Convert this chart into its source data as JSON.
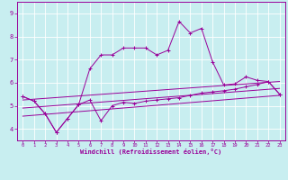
{
  "xlabel": "Windchill (Refroidissement éolien,°C)",
  "background_color": "#c8eef0",
  "grid_color": "#ffffff",
  "line_color": "#990099",
  "xlim": [
    -0.5,
    23.5
  ],
  "ylim": [
    3.5,
    9.5
  ],
  "yticks": [
    4,
    5,
    6,
    7,
    8,
    9
  ],
  "xticks": [
    0,
    1,
    2,
    3,
    4,
    5,
    6,
    7,
    8,
    9,
    10,
    11,
    12,
    13,
    14,
    15,
    16,
    17,
    18,
    19,
    20,
    21,
    22,
    23
  ],
  "line1_x": [
    0,
    1,
    2,
    3,
    4,
    5,
    6,
    7,
    8,
    9,
    10,
    11,
    12,
    13,
    14,
    15,
    16,
    17,
    18,
    19,
    20,
    21,
    22,
    23
  ],
  "line1_y": [
    5.4,
    5.2,
    4.65,
    3.85,
    4.45,
    5.05,
    5.25,
    4.35,
    5.0,
    5.15,
    5.1,
    5.2,
    5.25,
    5.3,
    5.35,
    5.45,
    5.55,
    5.6,
    5.65,
    5.72,
    5.82,
    5.92,
    6.05,
    5.5
  ],
  "line2_x": [
    0,
    1,
    2,
    3,
    4,
    5,
    6,
    7,
    8,
    9,
    10,
    11,
    12,
    13,
    14,
    15,
    16,
    17,
    18,
    19,
    20,
    21,
    22,
    23
  ],
  "line2_y": [
    5.4,
    5.2,
    4.65,
    3.85,
    4.45,
    5.05,
    6.6,
    7.2,
    7.2,
    7.5,
    7.5,
    7.5,
    7.2,
    7.4,
    8.65,
    8.15,
    8.35,
    6.9,
    5.9,
    5.95,
    6.25,
    6.1,
    6.05,
    5.5
  ],
  "line3_x": [
    0,
    23
  ],
  "line3_y": [
    4.55,
    5.45
  ],
  "line4_x": [
    0,
    23
  ],
  "line4_y": [
    5.25,
    6.05
  ],
  "line5_x": [
    0,
    23
  ],
  "line5_y": [
    4.9,
    5.75
  ]
}
